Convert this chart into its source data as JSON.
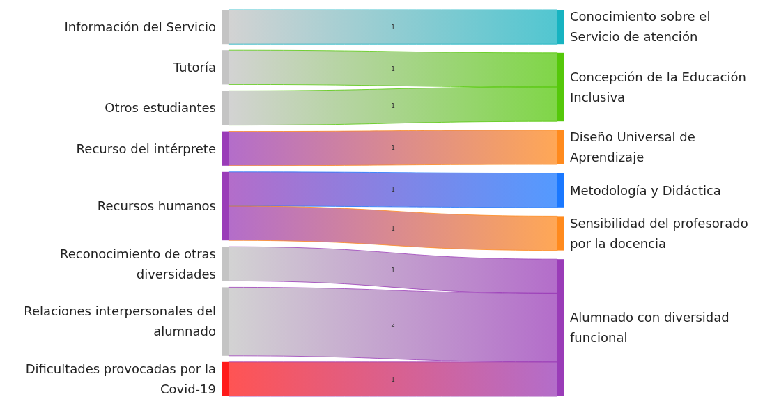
{
  "chart_data": {
    "type": "other",
    "data_labels": true,
    "categories": [
      "Información del Servicio",
      "Tutoría",
      "Otros estudiantes",
      "Recurso del intérprete",
      "Recursos humanos",
      "Reconocimiento de otras diversidades",
      "Relaciones interpersonales del alumnado",
      "Dificultades provocadas por la Covid-19"
    ],
    "colors": [
      "#c4c4c4",
      "#c4c4c4",
      "#c4c4c4",
      "#9a3cb8",
      "#9a3cb8",
      "#c4c4c4",
      "#c4c4c4",
      "#ff1a1a"
    ],
    "series": [
      {
        "name": "Conocimiento sobre el Servicio de atención",
        "color": "#17b3c1",
        "values": [
          1,
          null,
          null,
          null,
          null,
          null,
          null,
          null
        ]
      },
      {
        "name": "Concepción de la Educación Inclusiva",
        "color": "#55c80a",
        "values": [
          null,
          1,
          1,
          null,
          null,
          null,
          null,
          null
        ]
      },
      {
        "name": "Diseño Universal de Aprendizaje",
        "color": "#ff8a1d",
        "values": [
          null,
          null,
          null,
          1,
          null,
          null,
          null,
          null
        ]
      },
      {
        "name": "Metodología y Didáctica",
        "color": "#1a78ff",
        "values": [
          null,
          null,
          null,
          null,
          1,
          null,
          null,
          null
        ]
      },
      {
        "name": "Sensibilidad del profesorado por la docencia",
        "color": "#ff8a1d",
        "values": [
          null,
          null,
          null,
          null,
          1,
          null,
          null,
          null
        ]
      },
      {
        "name": "Alumnado con diversidad funcional",
        "color": "#9a3cb8",
        "values": [
          null,
          null,
          null,
          null,
          null,
          1,
          2,
          1
        ]
      }
    ]
  }
}
